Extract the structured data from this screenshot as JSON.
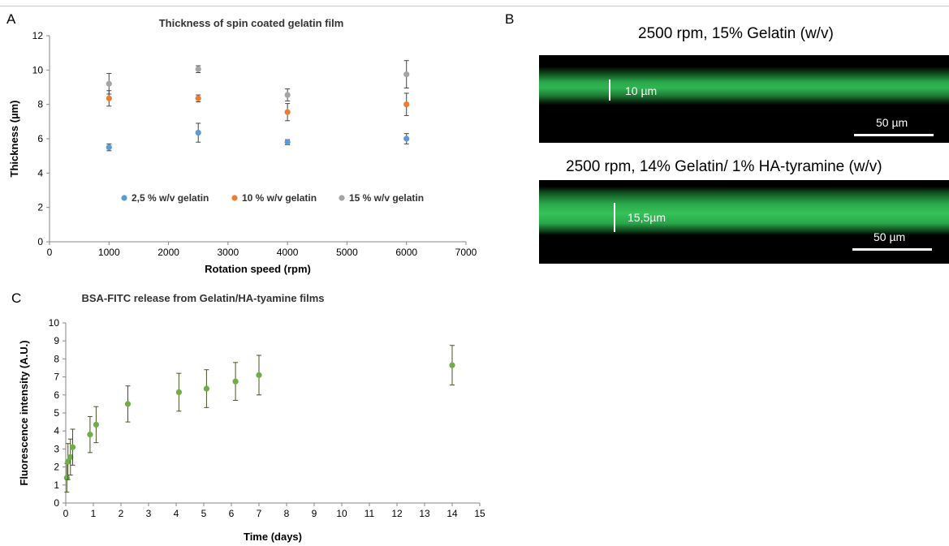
{
  "panels": {
    "a_label": "A",
    "b_label": "B",
    "c_label": "C"
  },
  "chart_data": [
    {
      "type": "scatter",
      "title": "Thickness of spin coated gelatin film",
      "xlabel": "Rotation speed (rpm)",
      "ylabel": "Thickness (µm)",
      "xlim": [
        0,
        7000
      ],
      "ylim": [
        0,
        12
      ],
      "xticks": [
        0,
        1000,
        2000,
        3000,
        4000,
        5000,
        6000,
        7000
      ],
      "yticks": [
        0,
        2,
        4,
        6,
        8,
        10,
        12
      ],
      "grid": false,
      "legend": "inside-bottom",
      "series": [
        {
          "name": "2,5 % w/v gelatin",
          "color": "#5b9bd5",
          "x": [
            1000,
            2500,
            4000,
            6000
          ],
          "y": [
            5.5,
            6.35,
            5.8,
            6.0
          ],
          "err": [
            0.2,
            0.55,
            0.15,
            0.3
          ]
        },
        {
          "name": "10 % w/v gelatin",
          "color": "#ed7d31",
          "x": [
            1000,
            2500,
            4000,
            6000
          ],
          "y": [
            8.35,
            8.35,
            7.55,
            8.0
          ],
          "err": [
            0.45,
            0.2,
            0.5,
            0.65
          ]
        },
        {
          "name": "15 % w/v gelatin",
          "color": "#a5a5a5",
          "x": [
            1000,
            2500,
            4000,
            6000
          ],
          "y": [
            9.2,
            10.05,
            8.55,
            9.75
          ],
          "err": [
            0.6,
            0.2,
            0.35,
            0.8
          ]
        }
      ]
    },
    {
      "type": "scatter",
      "title": "BSA-FITC release from Gelatin/HA-tyamine films",
      "xlabel": "Time (days)",
      "ylabel": "Fluorescence intensity  (A.U.)",
      "xlim": [
        0,
        15
      ],
      "ylim": [
        0,
        10
      ],
      "xticks": [
        0,
        1,
        2,
        3,
        4,
        5,
        6,
        7,
        8,
        9,
        10,
        11,
        12,
        13,
        14,
        15
      ],
      "yticks": [
        0,
        1,
        2,
        3,
        4,
        5,
        6,
        7,
        8,
        9,
        10
      ],
      "grid": false,
      "series": [
        {
          "color": "#70ad47",
          "x": [
            0.04,
            0.08,
            0.17,
            0.25,
            0.88,
            1.1,
            2.25,
            4.1,
            5.1,
            6.15,
            7.0,
            14.0
          ],
          "y": [
            1.4,
            2.3,
            2.55,
            3.1,
            3.8,
            4.35,
            5.5,
            6.15,
            6.35,
            6.75,
            7.1,
            7.65
          ],
          "err": [
            0.8,
            1.0,
            1.0,
            1.0,
            1.0,
            1.0,
            1.0,
            1.05,
            1.05,
            1.05,
            1.1,
            1.1
          ]
        }
      ]
    }
  ],
  "micrographs": [
    {
      "title": "2500 rpm, 15% Gelatin (w/v)",
      "thickness_label": "10 µm",
      "scale_label": "50 µm"
    },
    {
      "title": "2500 rpm, 14% Gelatin/ 1% HA-tyramine (w/v)",
      "thickness_label": "15,5µm",
      "scale_label": "50 µm"
    }
  ]
}
